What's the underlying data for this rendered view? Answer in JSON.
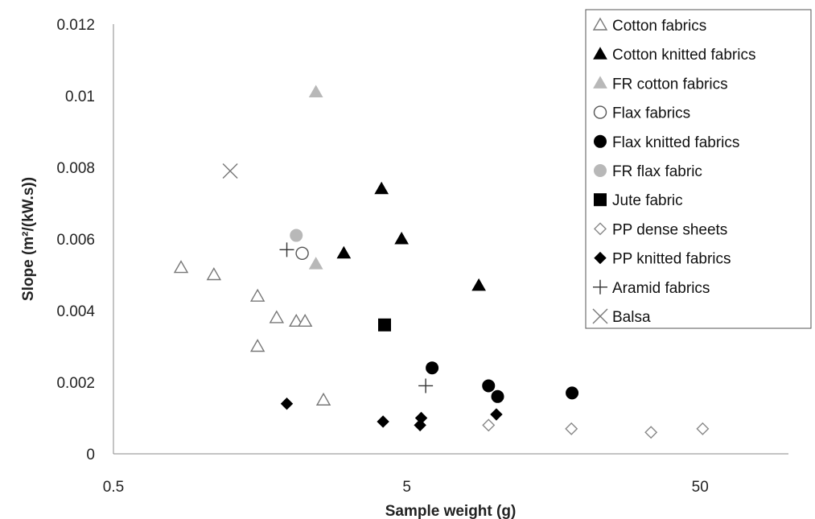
{
  "chart_data": {
    "type": "scatter",
    "xlabel": "Sample weight (g)",
    "ylabel": "Slope (m²/(kW.s))",
    "xscale": "log",
    "xlim": [
      0.5,
      100
    ],
    "ylim": [
      0,
      0.012
    ],
    "x_ticks": [
      0.5,
      5,
      50
    ],
    "x_tick_labels": [
      "0.5",
      "5",
      "50"
    ],
    "y_ticks": [
      0,
      0.002,
      0.004,
      0.006,
      0.008,
      0.01,
      0.012
    ],
    "y_tick_labels": [
      "0",
      "0.002",
      "0.004",
      "0.006",
      "0.008",
      "0.01",
      "0.012"
    ],
    "grid": false,
    "legend_position": "top-right",
    "series": [
      {
        "name": "Cotton fabrics",
        "marker": "triangle-open",
        "color": "#777777",
        "points": [
          [
            0.85,
            0.0052
          ],
          [
            1.1,
            0.005
          ],
          [
            1.55,
            0.0044
          ],
          [
            1.8,
            0.0038
          ],
          [
            2.1,
            0.0037
          ],
          [
            2.25,
            0.0037
          ],
          [
            1.55,
            0.003
          ],
          [
            2.6,
            0.0015
          ]
        ]
      },
      {
        "name": "Cotton knitted fabrics",
        "marker": "triangle-filled",
        "color": "#000000",
        "points": [
          [
            4.1,
            0.0074
          ],
          [
            4.8,
            0.006
          ],
          [
            3.05,
            0.0056
          ],
          [
            8.8,
            0.0047
          ]
        ]
      },
      {
        "name": "FR cotton fabrics",
        "marker": "triangle-filled",
        "color": "#b8b8b8",
        "points": [
          [
            2.45,
            0.0101
          ],
          [
            2.45,
            0.0053
          ]
        ]
      },
      {
        "name": "Flax fabrics",
        "marker": "circle-open",
        "color": "#555555",
        "points": [
          [
            2.2,
            0.0056
          ]
        ]
      },
      {
        "name": "Flax knitted fabrics",
        "marker": "circle-filled",
        "color": "#000000",
        "points": [
          [
            6.1,
            0.0024
          ],
          [
            9.5,
            0.0019
          ],
          [
            10.2,
            0.0016
          ],
          [
            18.3,
            0.0017
          ]
        ]
      },
      {
        "name": "FR flax fabric",
        "marker": "circle-filled",
        "color": "#b8b8b8",
        "points": [
          [
            2.1,
            0.0061
          ]
        ]
      },
      {
        "name": "Jute fabric",
        "marker": "square-filled",
        "color": "#000000",
        "points": [
          [
            4.2,
            0.0036
          ]
        ]
      },
      {
        "name": "PP dense sheets",
        "marker": "diamond-open",
        "color": "#888888",
        "points": [
          [
            9.5,
            0.0008
          ],
          [
            18.2,
            0.0007
          ],
          [
            34,
            0.0006
          ],
          [
            51,
            0.0007
          ]
        ]
      },
      {
        "name": "PP knitted fabrics",
        "marker": "diamond-filled",
        "color": "#000000",
        "points": [
          [
            1.95,
            0.0014
          ],
          [
            4.15,
            0.0009
          ],
          [
            5.6,
            0.001
          ],
          [
            5.55,
            0.0008
          ],
          [
            10.1,
            0.0011
          ]
        ]
      },
      {
        "name": "Aramid fabrics",
        "marker": "plus",
        "color": "#333333",
        "points": [
          [
            1.95,
            0.0057
          ],
          [
            5.8,
            0.0019
          ]
        ]
      },
      {
        "name": "Balsa",
        "marker": "cross",
        "color": "#777777",
        "points": [
          [
            1.25,
            0.0079
          ]
        ]
      }
    ]
  }
}
